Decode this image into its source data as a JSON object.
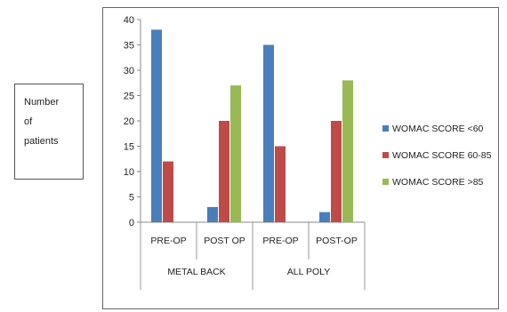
{
  "chart_data": {
    "type": "bar",
    "ylabel_lines": [
      "Number",
      "of",
      "patients"
    ],
    "ylim": [
      0,
      40
    ],
    "yticks": [
      0,
      5,
      10,
      15,
      20,
      25,
      30,
      35,
      40
    ],
    "grid": false,
    "legend_position": "right",
    "categories": [
      "PRE-OP",
      "POST OP",
      "PRE-OP",
      "POST-OP"
    ],
    "groups": [
      {
        "label": "METAL BACK",
        "span": [
          0,
          1
        ]
      },
      {
        "label": "ALL POLY",
        "span": [
          2,
          3
        ]
      }
    ],
    "series": [
      {
        "name": "WOMAC SCORE <60",
        "color": "#4a7ebb",
        "values": [
          38,
          3,
          35,
          2
        ]
      },
      {
        "name": "WOMAC SCORE 60-85",
        "color": "#be4b48",
        "values": [
          12,
          20,
          15,
          20
        ]
      },
      {
        "name": "WOMAC SCORE >85",
        "color": "#98b954",
        "values": [
          0,
          27,
          0,
          28
        ]
      }
    ]
  }
}
